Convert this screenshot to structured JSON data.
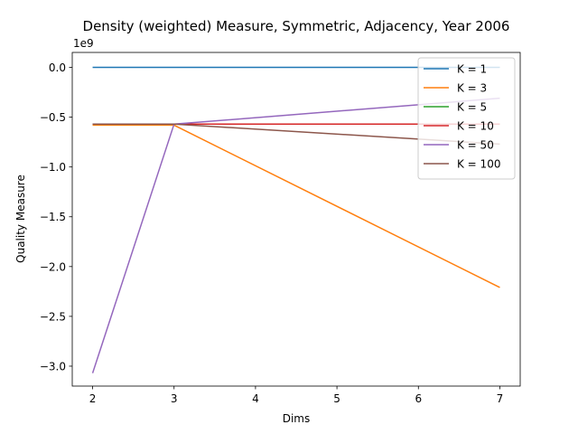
{
  "chart_data": {
    "type": "line",
    "title": "Density (weighted) Measure, Symmetric, Adjacency, Year 2006",
    "xlabel": "Dims",
    "ylabel": "Quality Measure",
    "y_offset_label": "1e9",
    "x": [
      2,
      3,
      7
    ],
    "xlim": [
      1.75,
      7.25
    ],
    "ylim": [
      -3.2,
      0.15
    ],
    "xticks": [
      2,
      3,
      4,
      5,
      6,
      7
    ],
    "yticks": [
      0.0,
      -0.5,
      -1.0,
      -1.5,
      -2.0,
      -2.5,
      -3.0
    ],
    "xtick_labels": [
      "2",
      "3",
      "4",
      "5",
      "6",
      "7"
    ],
    "ytick_labels": [
      "0.0",
      "−0.5",
      "−1.0",
      "−1.5",
      "−2.0",
      "−2.5",
      "−3.0"
    ],
    "grid": false,
    "legend": "top-right",
    "series": [
      {
        "name": "K = 1",
        "color": "#1f77b4",
        "values": [
          0.0,
          0.0,
          0.0
        ]
      },
      {
        "name": "K = 3",
        "color": "#ff7f0e",
        "values": [
          -0.58,
          -0.58,
          -2.21
        ]
      },
      {
        "name": "K = 5",
        "color": "#2ca02c",
        "values": [
          -0.57,
          -0.57,
          -0.57
        ]
      },
      {
        "name": "K = 10",
        "color": "#d62728",
        "values": [
          -0.57,
          -0.57,
          -0.57
        ]
      },
      {
        "name": "K = 50",
        "color": "#9467bd",
        "values": [
          -3.07,
          -0.57,
          -0.31
        ]
      },
      {
        "name": "K = 100",
        "color": "#8c564b",
        "values": [
          -0.57,
          -0.57,
          -0.77
        ]
      }
    ]
  }
}
